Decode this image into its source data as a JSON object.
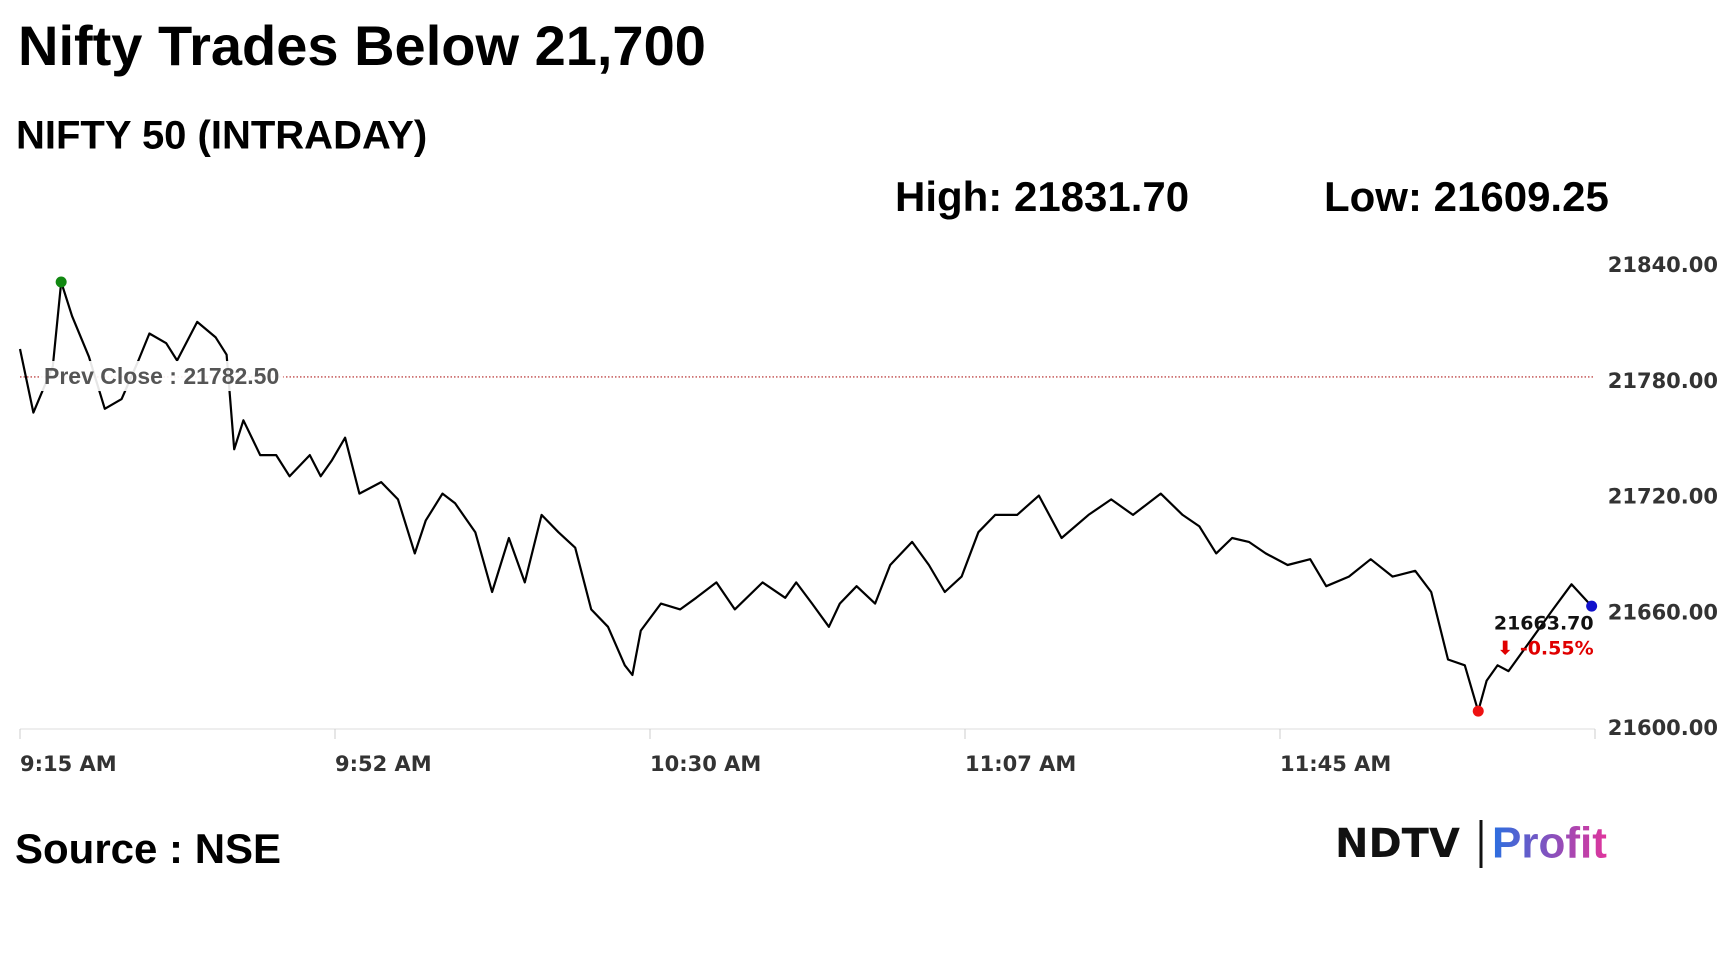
{
  "chart_data": {
    "type": "line",
    "title": "Nifty Trades Below 21,700",
    "subtitle": "NIFTY 50 (INTRADAY)",
    "high_label": "High: 21831.70",
    "low_label": "Low: 21609.25",
    "x": [
      555,
      556.6,
      558.9,
      559.9,
      561.2,
      563.2,
      565.1,
      567.1,
      569.1,
      570.4,
      572.4,
      573.7,
      576.1,
      578.3,
      579.6,
      580.5,
      581.6,
      583.6,
      585.5,
      587.1,
      589.5,
      590.8,
      592.1,
      593.7,
      595.4,
      598,
      600,
      602,
      603.3,
      605.3,
      606.8,
      609.2,
      611.2,
      613.2,
      615.1,
      617.1,
      619.1,
      621.1,
      623,
      625,
      627,
      627.9,
      628.9,
      631.3,
      633.6,
      635.5,
      637.9,
      640.1,
      643.4,
      646.1,
      647.4,
      649.3,
      651.3,
      652.6,
      654.6,
      656.8,
      658.6,
      661.2,
      663.2,
      665.1,
      667.1,
      669.1,
      671.1,
      673.7,
      676.3,
      679,
      682.2,
      684.9,
      687.5,
      690.8,
      693.4,
      695.4,
      697.4,
      699.3,
      701.3,
      703.3,
      705.9,
      708.6,
      710.5,
      713.2,
      715.8,
      718.4,
      721.1,
      723,
      725,
      727,
      728.6,
      729.6,
      730.9,
      732.2,
      737.5,
      739.7,
      742.1
    ],
    "series": [
      {
        "color": "#000000",
        "values": [
          21797,
          21764,
          21788,
          21831.7,
          21814,
          21793,
          21766,
          21771,
          21791,
          21805,
          21800,
          21791,
          21811,
          21803,
          21794,
          21745,
          21760,
          21742,
          21742,
          21731,
          21742,
          21731,
          21739,
          21751,
          21722,
          21728,
          21719,
          21691,
          21708,
          21722,
          21717,
          21702,
          21671,
          21699,
          21676,
          21711,
          21702,
          21694,
          21662,
          21653,
          21633,
          21628,
          21651,
          21665,
          21662,
          21668,
          21676,
          21662,
          21676,
          21668,
          21676,
          21665,
          21653,
          21665,
          21674,
          21665,
          21685,
          21697,
          21685,
          21671,
          21679,
          21702,
          21711,
          21711,
          21721,
          21699,
          21711,
          21719,
          21711,
          21722,
          21711,
          21705,
          21691,
          21699,
          21697,
          21691,
          21685,
          21688,
          21674,
          21679,
          21688,
          21679,
          21682,
          21671,
          21636,
          21633,
          21609.25,
          21625,
          21633,
          21630,
          21662,
          21675,
          21663.7
        ]
      }
    ],
    "xlim": [
      555,
      742.5
    ],
    "xticks": [
      {
        "value": 555,
        "label": "9:15 AM"
      },
      {
        "value": 592.5,
        "label": "9:52 AM"
      },
      {
        "value": 630,
        "label": "10:30 AM"
      },
      {
        "value": 667.5,
        "label": "11:07 AM"
      },
      {
        "value": 705,
        "label": "11:45 AM"
      }
    ],
    "ylim": [
      21600,
      21840
    ],
    "yticks": [
      {
        "value": 21600,
        "label": "21600.00"
      },
      {
        "value": 21660,
        "label": "21660.00"
      },
      {
        "value": 21720,
        "label": "21720.00"
      },
      {
        "value": 21780,
        "label": "21780.00"
      },
      {
        "value": 21840,
        "label": "21840.00"
      }
    ],
    "prev_close": {
      "label": "Prev Close : 21782.50",
      "value": 21782.5,
      "color": "#b22222"
    },
    "last_label": "21663.70",
    "change_label": "⬇ -0.55%",
    "change_color": "#e00000",
    "high_color": "#118811",
    "low_color": "#ee1111",
    "last_color": "#1111cc",
    "source": "Source : NSE",
    "logo": {
      "left": "NDTV",
      "right": "Profit"
    }
  }
}
